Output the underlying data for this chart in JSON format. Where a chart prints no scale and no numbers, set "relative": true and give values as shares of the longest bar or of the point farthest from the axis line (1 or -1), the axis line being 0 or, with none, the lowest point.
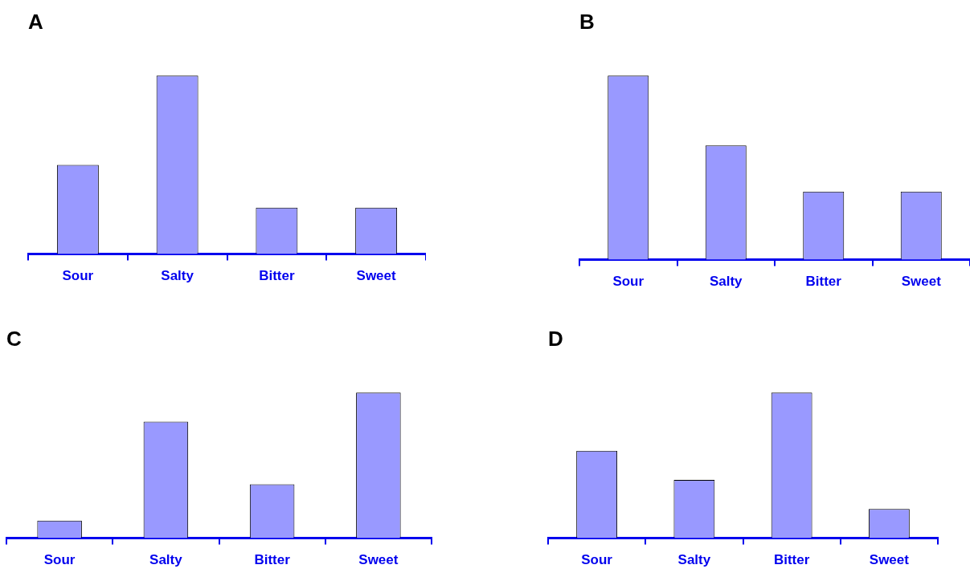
{
  "chart_data": [
    {
      "type": "bar",
      "title": "A",
      "categories": [
        "Sour",
        "Salty",
        "Bitter",
        "Sweet"
      ],
      "values": [
        0.5,
        1,
        0.26,
        0.26
      ],
      "color": "#9999ff",
      "relative": true
    },
    {
      "type": "bar",
      "title": "B",
      "categories": [
        "Sour",
        "Salty",
        "Bitter",
        "Sweet"
      ],
      "values": [
        1,
        0.62,
        0.37,
        0.37
      ],
      "color": "#9999ff",
      "relative": true
    },
    {
      "type": "bar",
      "title": "C",
      "categories": [
        "Sour",
        "Salty",
        "Bitter",
        "Sweet"
      ],
      "values": [
        0.12,
        0.8,
        0.37,
        1
      ],
      "color": "#9999ff",
      "relative": true
    },
    {
      "type": "bar",
      "title": "D",
      "categories": [
        "Sour",
        "Salty",
        "Bitter",
        "Sweet"
      ],
      "values": [
        0.6,
        0.4,
        1,
        0.2
      ],
      "color": "#9999ff",
      "relative": true
    }
  ]
}
